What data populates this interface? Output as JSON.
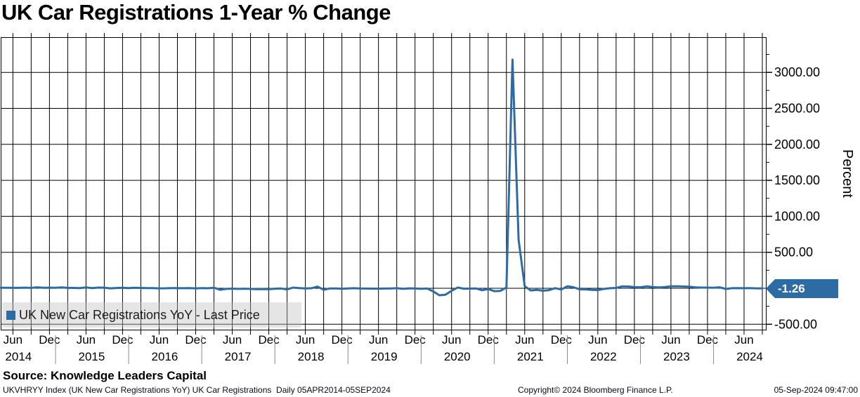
{
  "header": {
    "title": "UK Car Registrations 1-Year % Change"
  },
  "legend": {
    "label": "UK New Car Registrations YoY - Last Price",
    "swatch_color": "#2d6ba5"
  },
  "badge": {
    "label": "-1.26",
    "color": "#2d6ba5"
  },
  "y_axis": {
    "unit_label": "Percent"
  },
  "footer": {
    "source": "Source: Knowledge Leaders Capital",
    "ticker_line": "UKVHRYY Index (UK New Car Registrations YoY) UK Car Registrations  Daily 05APR2014-05SEP2024",
    "copyright": "Copyright© 2024 Bloomberg Finance L.P.",
    "timestamp": "05-Sep-2024 09:47:00"
  },
  "chart_data": {
    "type": "line",
    "title": "UK Car Registrations 1-Year % Change",
    "series_name": "UK New Car Registrations YoY - Last Price",
    "line_color": "#2d6ba5",
    "grid_color": "#000000",
    "frequency": "monthly",
    "start_month": "2014-04",
    "end_month": "2024-09",
    "values": [
      8,
      8,
      6,
      6,
      9,
      6,
      14,
      8,
      9,
      7,
      12,
      6,
      5,
      2,
      13,
      3,
      10,
      9,
      -1,
      4,
      8,
      3,
      8,
      5,
      2,
      3,
      -1,
      0,
      3,
      2,
      1,
      3,
      -1,
      3,
      0,
      8,
      -20,
      -9,
      -5,
      -9,
      -6,
      -9,
      -12,
      -11,
      -14,
      -6,
      -3,
      -16,
      10,
      3,
      -3,
      1,
      23,
      -20,
      -3,
      -3,
      -6,
      -2,
      1,
      -3,
      -4,
      -5,
      -5,
      -4,
      -2,
      1,
      -7,
      -1,
      -3,
      -7,
      -3,
      -44,
      -97,
      -89,
      -35,
      11,
      -6,
      -4,
      -2,
      -27,
      -11,
      -40,
      -36,
      11,
      3177,
      674,
      28,
      -30,
      -22,
      -34,
      -25,
      2,
      -18,
      28,
      15,
      -14,
      -16,
      -21,
      -24,
      -9,
      1,
      5,
      26,
      24,
      18,
      15,
      26,
      18,
      12,
      17,
      26,
      28,
      24,
      21,
      14,
      10,
      10,
      8,
      14,
      -10,
      1,
      2,
      1,
      3,
      -1.26,
      -1.26
    ],
    "last_price": -1.26,
    "ylabel": "Percent",
    "ylim": [
      -576,
      3496
    ],
    "y_major_tick_step": 500,
    "y_minor_tick_step": 250,
    "y_tick_labels": [
      "3000.00",
      "2500.00",
      "2000.00",
      "1500.00",
      "1000.00",
      "500.00",
      "-500.00"
    ],
    "y_tick_values": [
      3000,
      2500,
      2000,
      1500,
      1000,
      500,
      -500
    ],
    "y_gridline_values": [
      3000,
      2500,
      2000,
      1500,
      1000,
      500,
      0,
      -500
    ],
    "x_tick_month_names": [
      "Jun",
      "Dec"
    ],
    "x_years": [
      "2014",
      "2015",
      "2016",
      "2017",
      "2018",
      "2019",
      "2020",
      "2021",
      "2022",
      "2023",
      "2024"
    ],
    "x_gridlines": "quarterly",
    "legend_position": "bottom-left",
    "grid": true
  }
}
